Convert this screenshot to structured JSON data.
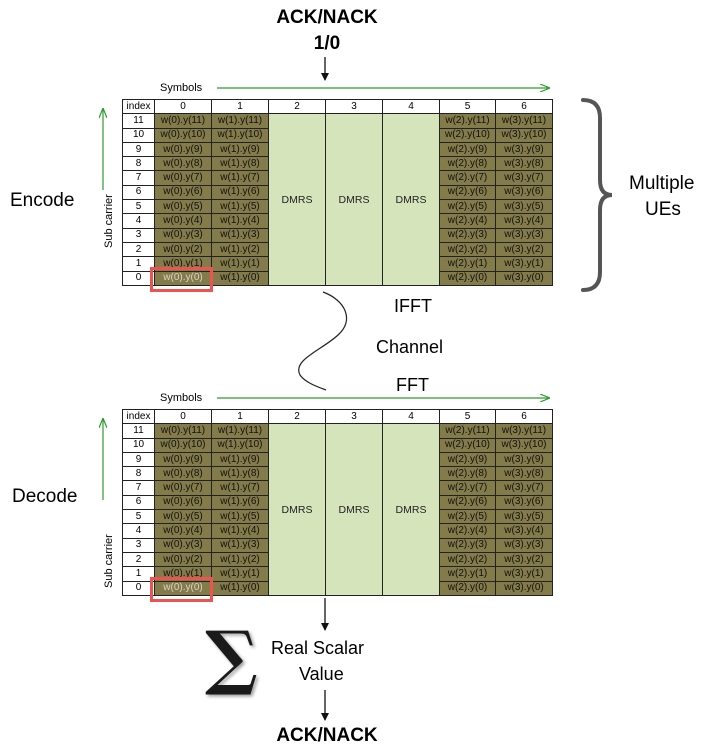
{
  "top": {
    "title_line1": "ACK/NACK",
    "title_line2": "1/0"
  },
  "left_labels": {
    "encode": "Encode",
    "decode": "Decode"
  },
  "right_labels": {
    "line1": "Multiple",
    "line2": "UEs"
  },
  "channel": {
    "ifft": "IFFT",
    "channel": "Channel",
    "fft": "FFT"
  },
  "axis": {
    "symbols": "Symbols",
    "subcarrier": "Sub carrier"
  },
  "bottom": {
    "sigma": "∑",
    "line1": "Real Scalar",
    "line2": "Value",
    "result": "ACK/NACK"
  },
  "colors": {
    "data_cell": "#837b49",
    "dmrs_cell": "#d6e4bc",
    "highlight": "#ef5350",
    "arrow_green": "#2e9b2e"
  },
  "grid": {
    "header": [
      "index",
      "0",
      "1",
      "2",
      "3",
      "4",
      "5",
      "6"
    ],
    "dmrs_label": "DMRS",
    "rows": [
      {
        "index": "11",
        "c0": "w(0).y(11)",
        "c1": "w(1).y(11)",
        "c5": "w(2).y(11)",
        "c6": "w(3).y(11)"
      },
      {
        "index": "10",
        "c0": "w(0).y(10)",
        "c1": "w(1).y(10)",
        "c5": "w(2).y(10)",
        "c6": "w(3).y(10)"
      },
      {
        "index": "9",
        "c0": "w(0).y(9)",
        "c1": "w(1).y(9)",
        "c5": "w(2).y(9)",
        "c6": "w(3).y(9)"
      },
      {
        "index": "8",
        "c0": "w(0).y(8)",
        "c1": "w(1).y(8)",
        "c5": "w(2).y(8)",
        "c6": "w(3).y(8)"
      },
      {
        "index": "7",
        "c0": "w(0).y(7)",
        "c1": "w(1).y(7)",
        "c5": "w(2).y(7)",
        "c6": "w(3).y(7)"
      },
      {
        "index": "6",
        "c0": "w(0).y(6)",
        "c1": "w(1).y(6)",
        "c5": "w(2).y(6)",
        "c6": "w(3).y(6)"
      },
      {
        "index": "5",
        "c0": "w(0).y(5)",
        "c1": "w(1).y(5)",
        "c5": "w(2).y(5)",
        "c6": "w(3).y(5)"
      },
      {
        "index": "4",
        "c0": "w(0).y(4)",
        "c1": "w(1).y(4)",
        "c5": "w(2).y(4)",
        "c6": "w(3).y(4)"
      },
      {
        "index": "3",
        "c0": "w(0).y(3)",
        "c1": "w(1).y(3)",
        "c5": "w(2).y(3)",
        "c6": "w(3).y(3)"
      },
      {
        "index": "2",
        "c0": "w(0).y(2)",
        "c1": "w(1).y(2)",
        "c5": "w(2).y(2)",
        "c6": "w(3).y(2)"
      },
      {
        "index": "1",
        "c0": "w(0).y(1)",
        "c1": "w(1).y(1)",
        "c5": "w(2).y(1)",
        "c6": "w(3).y(1)"
      },
      {
        "index": "0",
        "c0": "w(0).y(0)",
        "c1": "w(1).y(0)",
        "c5": "w(2).y(0)",
        "c6": "w(3).y(0)"
      }
    ]
  }
}
